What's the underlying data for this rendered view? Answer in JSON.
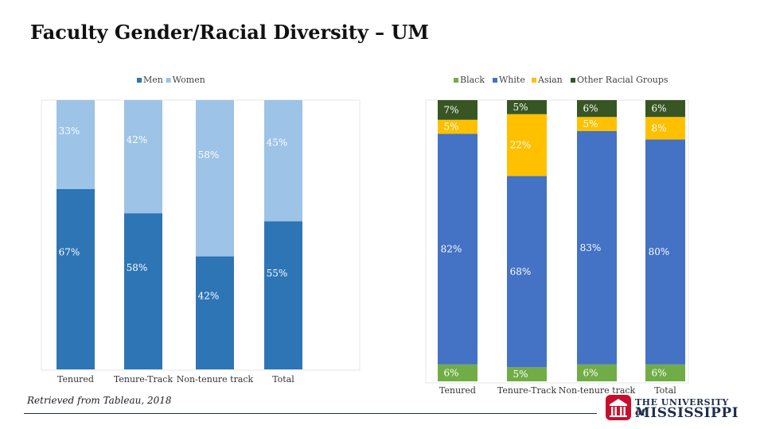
{
  "title": "Faculty Gender/Racial Diversity – UM",
  "source": "Retrieved from Tableau, 2018",
  "logo": {
    "small_text": "THE UNIVERSITY of",
    "big_text": "MISSISSIPPI",
    "crest_color": "#c8102e",
    "navy": "#1f2d4d"
  },
  "chart_data": [
    {
      "type": "bar",
      "stacked": true,
      "categories": [
        "Tenured",
        "Tenure-Track",
        "Non-tenure track",
        "Total"
      ],
      "series": [
        {
          "name": "Men",
          "color": "#2e75b6",
          "values": [
            67,
            58,
            42,
            55
          ],
          "labels": [
            "67%",
            "58%",
            "42%",
            "55%"
          ]
        },
        {
          "name": "Women",
          "color": "#9dc3e6",
          "values": [
            33,
            42,
            58,
            45
          ],
          "labels": [
            "33%",
            "42%",
            "58%",
            "45%"
          ]
        }
      ],
      "ylim": [
        0,
        100
      ],
      "legend": "top-left",
      "grid": false
    },
    {
      "type": "bar",
      "stacked": true,
      "categories": [
        "Tenured",
        "Tenure-Track",
        "Non-tenure track",
        "Total"
      ],
      "series": [
        {
          "name": "Black",
          "color": "#70ad47",
          "values": [
            6,
            5,
            6,
            6
          ],
          "labels": [
            "6%",
            "5%",
            "6%",
            "6%"
          ]
        },
        {
          "name": "White",
          "color": "#4472c4",
          "values": [
            82,
            68,
            83,
            80
          ],
          "labels": [
            "82%",
            "68%",
            "83%",
            "80%"
          ]
        },
        {
          "name": "Asian",
          "color": "#ffc000",
          "values": [
            5,
            22,
            5,
            8
          ],
          "labels": [
            "5%",
            "22%",
            "5%",
            "8%"
          ]
        },
        {
          "name": "Other Racial Groups",
          "color": "#375623",
          "values": [
            7,
            5,
            6,
            6
          ],
          "labels": [
            "7%",
            "5%",
            "6%",
            "6%"
          ]
        }
      ],
      "ylim": [
        0,
        100
      ],
      "legend": "top",
      "grid": false
    }
  ]
}
